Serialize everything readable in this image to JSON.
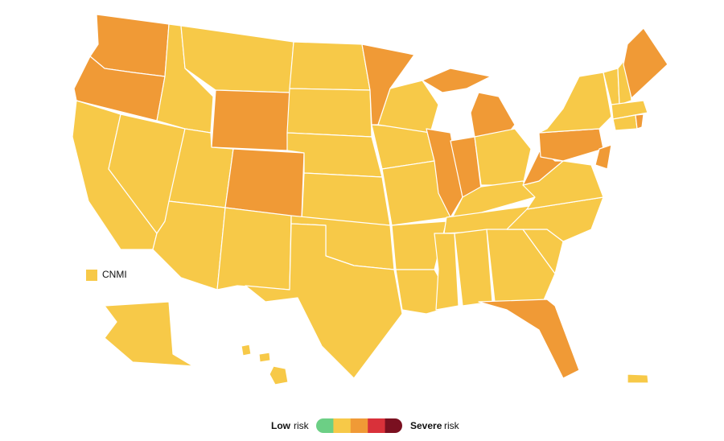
{
  "legend": {
    "low": "Low",
    "low_suffix": "risk",
    "high": "Severe",
    "high_suffix": "risk",
    "colors": [
      "#6ccf85",
      "#f7c948",
      "#f09a36",
      "#d9313a",
      "#7a1020"
    ]
  },
  "territory": {
    "label": "CNMI",
    "level": 1
  }
}
